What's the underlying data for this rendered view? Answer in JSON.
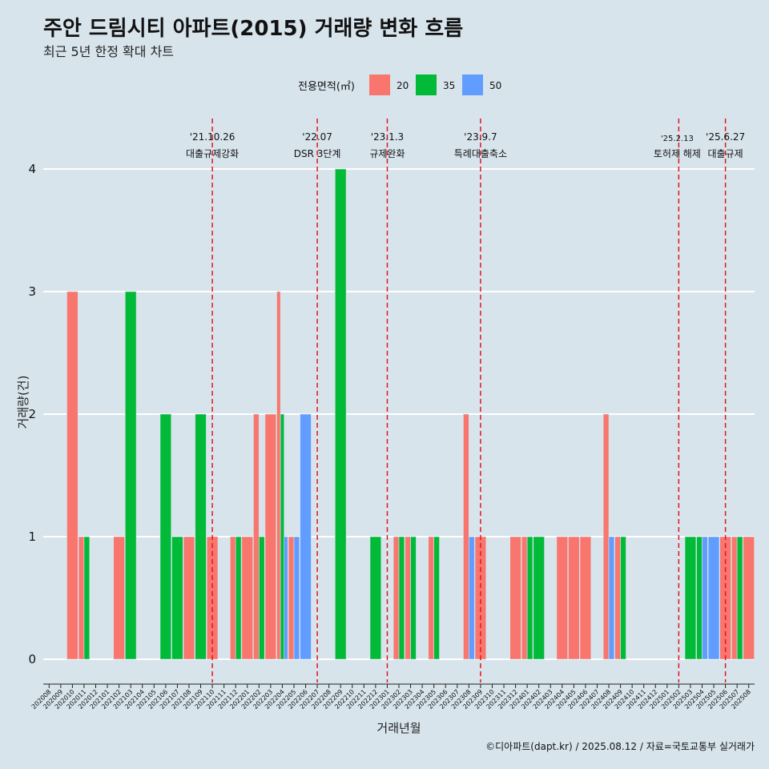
{
  "title": "주안 드림시티 아파트(2015) 거래량 변화 흐름",
  "subtitle": "최근 5년 한정 확대 차트",
  "caption": "©디아파트(dapt.kr) / 2025.08.12 / 자료=국토교통부 실거래가",
  "chart_data": {
    "type": "bar",
    "title": "주안 드림시티 아파트(2015) 거래량 변화 흐름",
    "subtitle": "최근 5년 한정 확대 차트",
    "xlabel": "거래년월",
    "ylabel": "거래량(건)",
    "ylim": [
      0,
      4
    ],
    "yticks": [
      0,
      1,
      2,
      3,
      4
    ],
    "grid": true,
    "legend": {
      "title": "전용면적(㎡)",
      "placement": "top"
    },
    "categories": [
      "202008",
      "202009",
      "202010",
      "202011",
      "202012",
      "202101",
      "202102",
      "202103",
      "202104",
      "202105",
      "202106",
      "202107",
      "202108",
      "202109",
      "202110",
      "202111",
      "202112",
      "202201",
      "202202",
      "202203",
      "202204",
      "202205",
      "202206",
      "202207",
      "202208",
      "202209",
      "202210",
      "202211",
      "202212",
      "202301",
      "202302",
      "202303",
      "202304",
      "202305",
      "202306",
      "202307",
      "202308",
      "202309",
      "202310",
      "202311",
      "202312",
      "202401",
      "202402",
      "202403",
      "202404",
      "202405",
      "202406",
      "202407",
      "202408",
      "202409",
      "202410",
      "202411",
      "202412",
      "202501",
      "202502",
      "202503",
      "202504",
      "202505",
      "202506",
      "202507",
      "202508"
    ],
    "series": [
      {
        "name": "20",
        "color": "#f8766d",
        "values": [
          0,
          0,
          3,
          1,
          0,
          0,
          1,
          0,
          0,
          0,
          0,
          0,
          1,
          0,
          1,
          0,
          1,
          1,
          2,
          2,
          3,
          1,
          0,
          0,
          0,
          0,
          0,
          0,
          0,
          0,
          1,
          1,
          0,
          1,
          0,
          0,
          2,
          1,
          0,
          0,
          1,
          1,
          0,
          0,
          1,
          1,
          1,
          0,
          2,
          1,
          0,
          0,
          0,
          0,
          0,
          0,
          0,
          0,
          1,
          1,
          1
        ]
      },
      {
        "name": "35",
        "color": "#00ba38",
        "values": [
          0,
          0,
          0,
          1,
          0,
          0,
          0,
          3,
          0,
          0,
          2,
          1,
          0,
          2,
          0,
          0,
          1,
          0,
          1,
          0,
          2,
          0,
          0,
          0,
          0,
          4,
          0,
          0,
          1,
          0,
          1,
          1,
          0,
          1,
          0,
          0,
          0,
          0,
          0,
          0,
          0,
          1,
          1,
          0,
          0,
          0,
          0,
          0,
          0,
          1,
          0,
          0,
          0,
          0,
          0,
          1,
          1,
          0,
          0,
          1,
          0
        ]
      },
      {
        "name": "50",
        "color": "#619cff",
        "values": [
          0,
          0,
          0,
          0,
          0,
          0,
          0,
          0,
          0,
          0,
          0,
          0,
          0,
          0,
          0,
          0,
          0,
          0,
          0,
          0,
          1,
          1,
          2,
          0,
          0,
          0,
          0,
          0,
          0,
          0,
          0,
          0,
          0,
          0,
          0,
          0,
          1,
          0,
          0,
          0,
          0,
          0,
          0,
          0,
          0,
          0,
          0,
          0,
          1,
          0,
          0,
          0,
          0,
          0,
          0,
          0,
          1,
          1,
          0,
          0,
          0
        ]
      }
    ],
    "annotations": [
      {
        "month": "202110",
        "date": "'21.10.26",
        "label": "대출규제강화"
      },
      {
        "month": "202207",
        "date": "'22.07",
        "label": "DSR 3단계"
      },
      {
        "month": "202301",
        "date": "'23.1.3",
        "label": "규제완화"
      },
      {
        "month": "202309",
        "date": "'23.9.7",
        "label": "특례대출축소"
      },
      {
        "month": "202502",
        "date": "'25.2.13",
        "label": "토허제 해제"
      },
      {
        "month": "202506",
        "date": "'25.6.27",
        "label": "대출규제"
      }
    ]
  }
}
